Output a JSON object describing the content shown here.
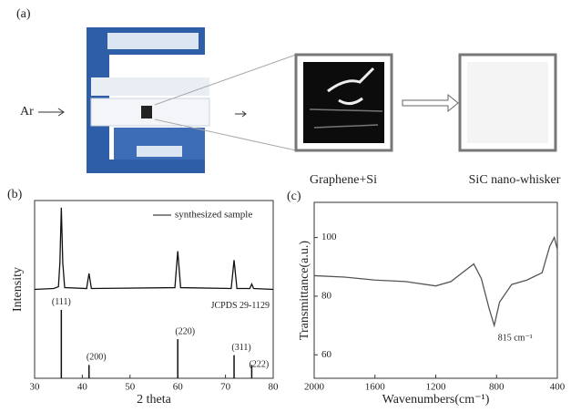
{
  "panel_a": {
    "label": "(a)",
    "gas": "Ar",
    "left_box": "Graphene+Si",
    "right_box": "SiC nano-whisker"
  },
  "chart_data": [
    {
      "type": "line",
      "panel": "(b)",
      "xlabel": "2 theta",
      "ylabel": "Intensity",
      "xlim": [
        30,
        80
      ],
      "xticks": [
        30,
        40,
        50,
        60,
        70,
        80
      ],
      "ylim": [
        0,
        200
      ],
      "x": [
        30,
        34,
        35,
        35.3,
        35.6,
        35.9,
        36.3,
        40.9,
        41.4,
        41.9,
        59.4,
        60,
        60.6,
        71.2,
        71.8,
        72.4,
        75.1,
        75.5,
        75.9,
        80
      ],
      "series": [
        {
          "name": "synthesized sample",
          "color": "#111111",
          "values": [
            100,
            101,
            103,
            130,
            192,
            130,
            102,
            101,
            118,
            101,
            102,
            143,
            102,
            101,
            133,
            101,
            101,
            106,
            101,
            100
          ]
        }
      ],
      "reference": {
        "label": "JCPDS 29-1129",
        "x": [
          35.6,
          41.4,
          60,
          71.8,
          75.5
        ],
        "values": [
          77,
          15,
          44,
          26,
          15
        ],
        "peak_labels": [
          "(111)",
          "(200)",
          "(220)",
          "(311)",
          "(222)"
        ],
        "color": "#111111"
      }
    },
    {
      "type": "line",
      "panel": "(c)",
      "xlabel": "Wavenumbers(cm⁻¹)",
      "ylabel": "Transmittance(a.u.)",
      "xlim": [
        2000,
        400
      ],
      "xticks": [
        2000,
        1600,
        1200,
        800,
        400
      ],
      "ylim": [
        52,
        112
      ],
      "yticks": [
        60,
        80,
        100
      ],
      "x": [
        2000,
        1800,
        1600,
        1400,
        1200,
        1100,
        1000,
        950,
        900,
        850,
        815,
        780,
        700,
        600,
        500,
        450,
        420,
        400
      ],
      "values": [
        87,
        86.5,
        85.5,
        85,
        83.5,
        85,
        89,
        91,
        86,
        76,
        70,
        78,
        84,
        85.5,
        88,
        97,
        100,
        96
      ],
      "color": "#555555",
      "annotation": {
        "text": "815 cm⁻¹",
        "x": 815
      }
    }
  ]
}
